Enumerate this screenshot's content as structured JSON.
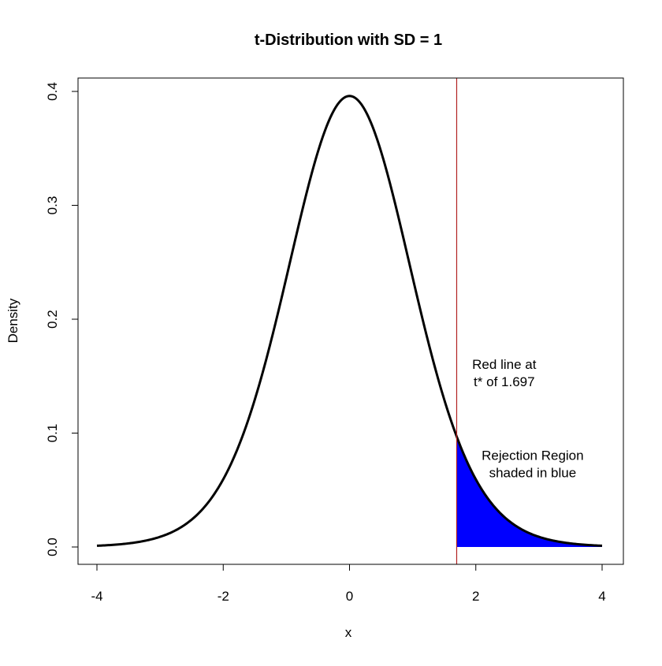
{
  "chart_data": {
    "type": "line",
    "title": "t-Distribution with SD = 1",
    "xlabel": "x",
    "ylabel": "Density",
    "xlim": [
      -4,
      4
    ],
    "ylim": [
      0,
      0.4
    ],
    "x_ticks": [
      -4,
      -2,
      0,
      2,
      4
    ],
    "y_ticks": [
      0.0,
      0.1,
      0.2,
      0.3,
      0.4
    ],
    "x_tick_labels": [
      "-4",
      "-2",
      "0",
      "2",
      "4"
    ],
    "y_tick_labels": [
      "0.0",
      "0.1",
      "0.2",
      "0.3",
      "0.4"
    ],
    "grid": false,
    "series": [
      {
        "color": "#000000",
        "x": [
          -4.0,
          -3.5,
          -3.0,
          -2.75,
          -2.5,
          -2.25,
          -2.0,
          -1.75,
          -1.5,
          -1.25,
          -1.0,
          -0.75,
          -0.5,
          -0.25,
          0.0,
          0.25,
          0.5,
          0.75,
          1.0,
          1.25,
          1.5,
          1.697,
          1.75,
          2.0,
          2.25,
          2.5,
          2.75,
          3.0,
          3.5,
          4.0
        ],
        "y": [
          0.0006,
          0.0021,
          0.0066,
          0.0114,
          0.0183,
          0.0314,
          0.0551,
          0.0864,
          0.1275,
          0.1797,
          0.237,
          0.2955,
          0.347,
          0.3828,
          0.396,
          0.3828,
          0.347,
          0.2955,
          0.237,
          0.1797,
          0.1275,
          0.0946,
          0.0864,
          0.0551,
          0.0314,
          0.0183,
          0.0114,
          0.0066,
          0.0021,
          0.0006
        ]
      }
    ],
    "critical_value": 1.697,
    "critical_line_color": "#b22222",
    "rejection_region": {
      "from": 1.697,
      "to": 4.0,
      "color": "#0000ff"
    },
    "annotations": [
      {
        "lines": [
          "Red line at",
          "t* of 1.697"
        ],
        "x": 2.45,
        "y": 0.148
      },
      {
        "lines": [
          "Rejection Region",
          "shaded in blue"
        ],
        "x": 2.9,
        "y": 0.068
      }
    ]
  }
}
